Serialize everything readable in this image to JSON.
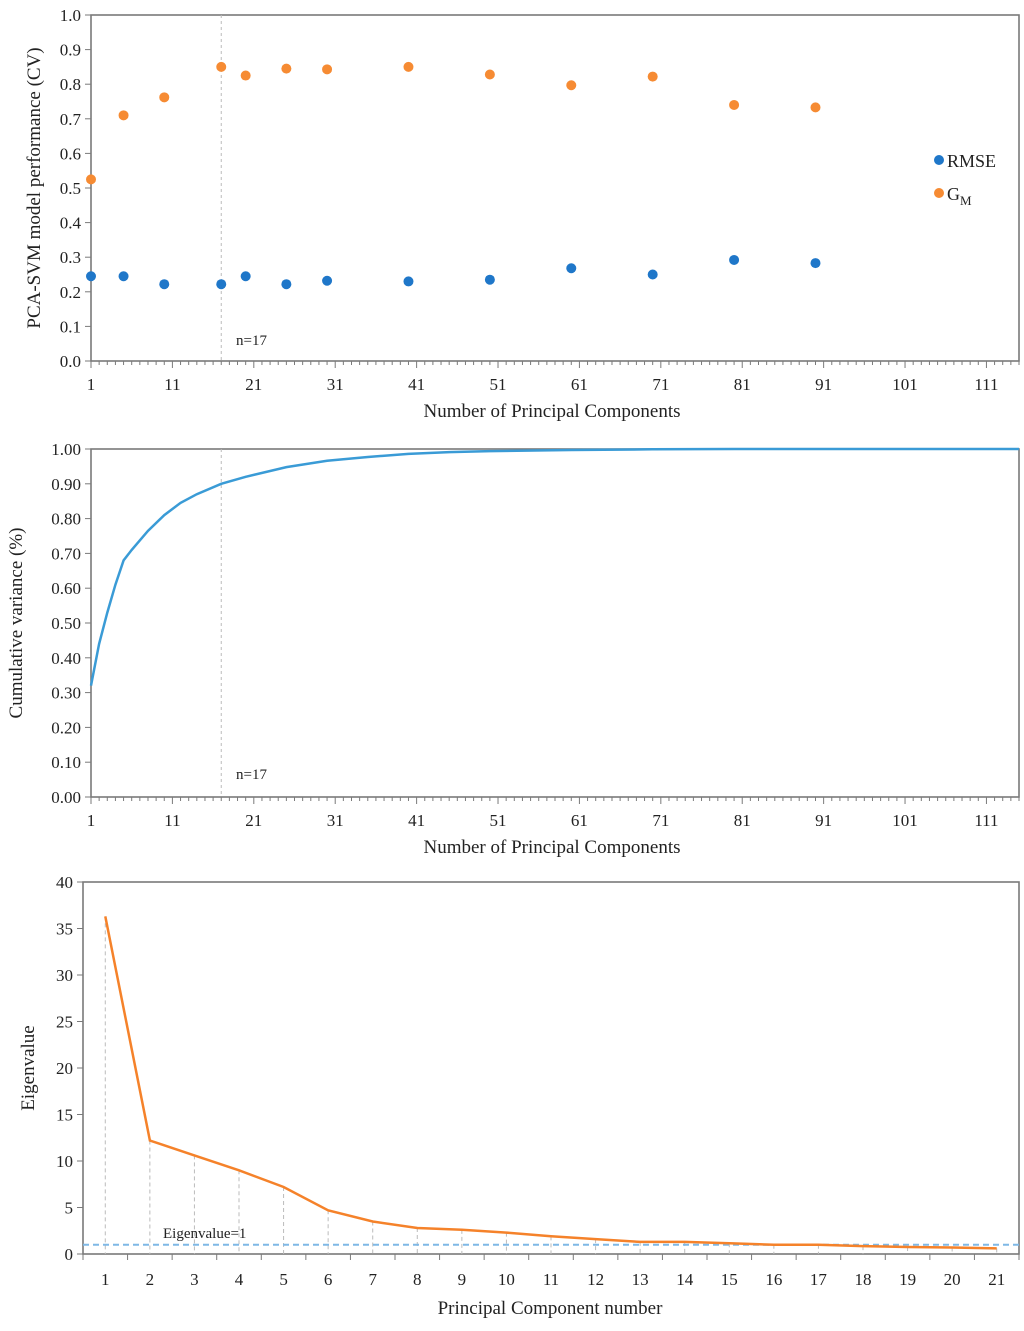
{
  "colors": {
    "rmse": "#1f77c9",
    "gm": "#f68b33",
    "cumvar": "#3a9bd6",
    "eigen": "#f5822a",
    "eigen_ref": "#7fb8e6",
    "guide": "#bbbbbb"
  },
  "chart_data": [
    {
      "type": "scatter",
      "ylabel": "PCA-SVM model performance (CV)",
      "xlabel": "Number of Principal Components",
      "xlim": [
        1,
        115
      ],
      "ylim": [
        0,
        1
      ],
      "xticks": [
        "1",
        "11",
        "21",
        "31",
        "41",
        "51",
        "61",
        "71",
        "81",
        "91",
        "101",
        "111"
      ],
      "yticks": [
        "0.0",
        "0.1",
        "0.2",
        "0.3",
        "0.4",
        "0.5",
        "0.6",
        "0.7",
        "0.8",
        "0.9",
        "1.0"
      ],
      "legend_position": "right",
      "series": [
        {
          "name": "RMSE",
          "name_main": "RMSE",
          "name_sub": "",
          "x": [
            1,
            5,
            10,
            17,
            20,
            25,
            30,
            40,
            50,
            60,
            70,
            80,
            90
          ],
          "y": [
            0.245,
            0.245,
            0.222,
            0.222,
            0.245,
            0.222,
            0.232,
            0.23,
            0.235,
            0.268,
            0.25,
            0.292,
            0.283
          ]
        },
        {
          "name": "GM",
          "name_main": "G",
          "name_sub": "M",
          "x": [
            1,
            5,
            10,
            17,
            20,
            25,
            30,
            40,
            50,
            60,
            70,
            80,
            90
          ],
          "y": [
            0.525,
            0.71,
            0.762,
            0.85,
            0.825,
            0.845,
            0.843,
            0.85,
            0.828,
            0.797,
            0.822,
            0.74,
            0.733
          ]
        }
      ],
      "annotation": {
        "text": "n=17",
        "x": 17
      }
    },
    {
      "type": "line",
      "ylabel": "Cumulative variance (%)",
      "xlabel": "Number of Principal Components",
      "xlim": [
        1,
        115
      ],
      "ylim": [
        0,
        1
      ],
      "xticks": [
        "1",
        "11",
        "21",
        "31",
        "41",
        "51",
        "61",
        "71",
        "81",
        "91",
        "101",
        "111"
      ],
      "yticks": [
        "0.00",
        "0.10",
        "0.20",
        "0.30",
        "0.40",
        "0.50",
        "0.60",
        "0.70",
        "0.80",
        "0.90",
        "1.00"
      ],
      "series": [
        {
          "name": "Cumulative variance",
          "x": [
            1,
            2,
            3,
            4,
            5,
            6,
            8,
            10,
            12,
            14,
            17,
            20,
            25,
            30,
            35,
            40,
            45,
            50,
            60,
            70,
            80,
            90,
            100,
            110,
            115
          ],
          "y": [
            0.32,
            0.44,
            0.53,
            0.61,
            0.68,
            0.71,
            0.765,
            0.81,
            0.845,
            0.87,
            0.9,
            0.92,
            0.948,
            0.966,
            0.977,
            0.986,
            0.991,
            0.994,
            0.997,
            0.999,
            1.0,
            1.0,
            1.0,
            1.0,
            1.0
          ]
        }
      ],
      "annotation": {
        "text": "n=17",
        "x": 17
      }
    },
    {
      "type": "line",
      "ylabel": "Eigenvalue",
      "xlabel": "Principal Component number",
      "ylim": [
        0,
        40
      ],
      "categories": [
        "1",
        "2",
        "3",
        "4",
        "5",
        "6",
        "7",
        "8",
        "9",
        "10",
        "11",
        "12",
        "13",
        "14",
        "15",
        "16",
        "17",
        "18",
        "19",
        "20",
        "21"
      ],
      "yticks": [
        "0",
        "5",
        "10",
        "15",
        "20",
        "25",
        "30",
        "35",
        "40"
      ],
      "series": [
        {
          "name": "Eigenvalue",
          "values": [
            36.3,
            12.2,
            10.6,
            9.0,
            7.2,
            4.7,
            3.5,
            2.8,
            2.6,
            2.3,
            1.9,
            1.6,
            1.3,
            1.3,
            1.15,
            1.0,
            1.0,
            0.85,
            0.75,
            0.7,
            0.6
          ]
        }
      ],
      "reference_line": {
        "label": "Eigenvalue=1",
        "value": 1
      }
    }
  ]
}
